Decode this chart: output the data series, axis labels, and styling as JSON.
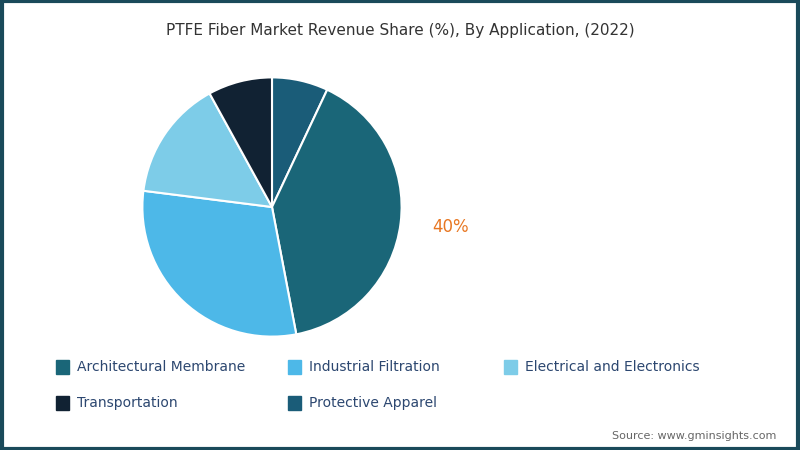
{
  "title": "PTFE Fiber Market Revenue Share (%), By Application, (2022)",
  "labels": [
    "Architectural Membrane",
    "Industrial Filtration",
    "Electrical and Electronics",
    "Transportation",
    "Protective Apparel"
  ],
  "values": [
    40,
    30,
    15,
    8,
    7
  ],
  "colors": [
    "#1a6678",
    "#4db8e8",
    "#7dcce8",
    "#112233",
    "#1a5c78"
  ],
  "annotation_label": "40%",
  "annotation_color": "#e87722",
  "source_text": "Source: www.gminsights.com",
  "title_fontsize": 11,
  "legend_fontsize": 10,
  "background_color": "#ffffff",
  "border_color": "#1a4a5a",
  "startangle": 90
}
